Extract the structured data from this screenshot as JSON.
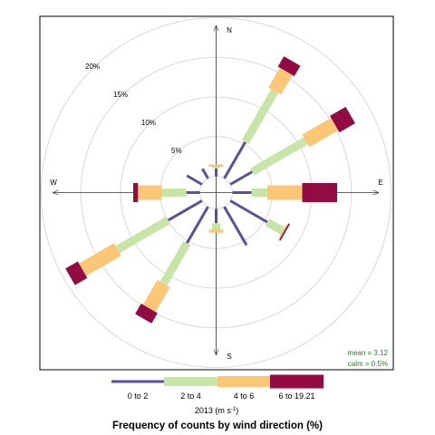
{
  "chart_data": {
    "type": "wind-rose",
    "title": "Frequency of counts by wind direction (%)",
    "legend_caption": "2013 (m s",
    "legend_caption_sup": "-1",
    "legend_caption_end": ")",
    "bins": [
      {
        "label": "0 to 2",
        "color": "#5b4fa0"
      },
      {
        "label": "2 to 4",
        "color": "#c6e5a6"
      },
      {
        "label": "4 to 6",
        "color": "#fbc676"
      },
      {
        "label": "6 to 19.21",
        "color": "#930b43"
      }
    ],
    "rings": [
      {
        "value": 5,
        "label": "5%"
      },
      {
        "value": 10,
        "label": "10%"
      },
      {
        "value": 15,
        "label": "15%"
      },
      {
        "value": 20,
        "label": "20%"
      }
    ],
    "compass": {
      "n": "N",
      "e": "E",
      "s": "S",
      "w": "W"
    },
    "stats": {
      "mean": "mean = 3.12",
      "calm": "calm = 0.5%"
    },
    "directions": [
      {
        "deg": 0,
        "cum": [
          1.0,
          1.2,
          1.5,
          1.5
        ]
      },
      {
        "deg": 30,
        "cum": [
          5.3,
          12.7,
          15.6,
          17.1
        ]
      },
      {
        "deg": 60,
        "cum": [
          3.2,
          11.0,
          15.2,
          17.5
        ]
      },
      {
        "deg": 90,
        "cum": [
          2.4,
          4.4,
          8.8,
          13.2
        ]
      },
      {
        "deg": 120,
        "cum": [
          5.4,
          7.6,
          7.8,
          8.0
        ]
      },
      {
        "deg": 150,
        "cum": [
          5.6,
          5.6,
          5.6,
          5.6
        ]
      },
      {
        "deg": 180,
        "cum": [
          1.8,
          2.6,
          3.0,
          3.0
        ]
      },
      {
        "deg": 210,
        "cum": [
          5.3,
          11.2,
          14.8,
          16.3
        ]
      },
      {
        "deg": 240,
        "cum": [
          4.9,
          12.3,
          17.4,
          19.2
        ]
      },
      {
        "deg": 270,
        "cum": [
          1.7,
          4.8,
          7.8,
          8.4
        ]
      },
      {
        "deg": 300,
        "cum": [
          2.2,
          2.2,
          2.2,
          2.2
        ]
      },
      {
        "deg": 330,
        "cum": [
          1.4,
          1.4,
          1.4,
          1.4
        ]
      }
    ]
  }
}
